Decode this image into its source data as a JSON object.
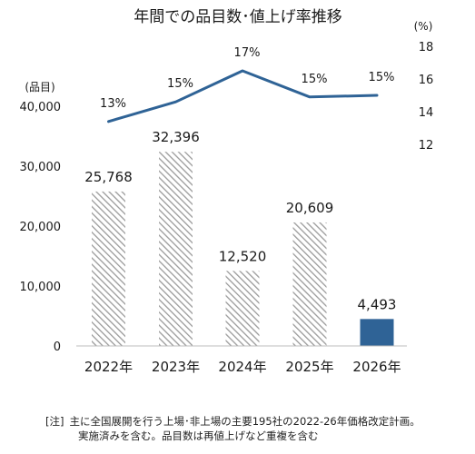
{
  "chart_data": {
    "type": "bar+line",
    "title": "年間での品目数･値上げ率推移",
    "categories": [
      "2022年",
      "2023年",
      "2024年",
      "2025年",
      "2026年"
    ],
    "bar_series": {
      "values": [
        25768,
        32396,
        12520,
        20609,
        4493
      ],
      "labels": [
        "25,768",
        "32,396",
        "12,520",
        "20,609",
        "4,493"
      ],
      "styles": [
        "hatched",
        "hatched",
        "hatched",
        "hatched",
        "solid"
      ],
      "colors": {
        "hatch_fg": "#9a9a9a",
        "hatch_bg": "#ffffff",
        "solid": "#2f6396"
      }
    },
    "line_series": {
      "values": [
        13,
        15,
        17,
        15,
        15
      ],
      "point_values": [
        13.4,
        14.6,
        16.5,
        14.9,
        15.0
      ],
      "labels": [
        "13%",
        "15%",
        "17%",
        "15%",
        "15%"
      ],
      "color": "#2f6396"
    },
    "left_axis": {
      "unit_label": "(品目)",
      "range": [
        0,
        40000
      ],
      "ticks": [
        0,
        10000,
        20000,
        30000,
        40000
      ],
      "tick_labels": [
        "0",
        "10,000",
        "20,000",
        "30,000",
        "40,000"
      ]
    },
    "right_axis": {
      "unit_label": "(%)",
      "range": [
        12,
        18
      ],
      "ticks": [
        12,
        14,
        16,
        18
      ],
      "tick_labels": [
        "12",
        "14",
        "16",
        "18"
      ]
    },
    "grid": false
  },
  "note": {
    "mark": "[注]",
    "line1": "主に全国展開を行う上場･非上場の主要195社の2022-26年価格改定計画。",
    "line2": "実施済みを含む。品目数は再値上げなど重複を含む"
  }
}
